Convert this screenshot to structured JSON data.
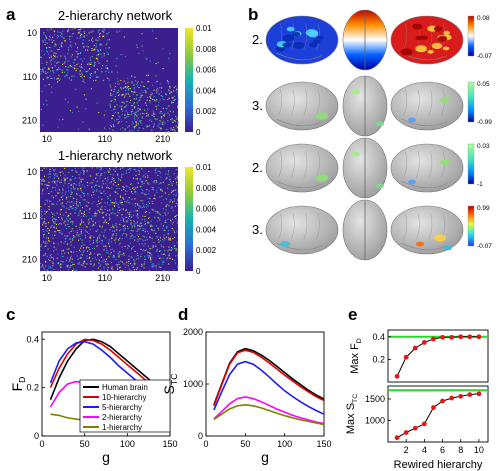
{
  "panel_labels": {
    "a": "a",
    "b": "b",
    "c": "c",
    "d": "d",
    "e": "e"
  },
  "panel_a": {
    "top_title": "2-hierarchy network",
    "bottom_title": "1-hierarchy network",
    "y_ticks": [
      "10",
      "110",
      "210"
    ],
    "x_ticks": [
      "10",
      "110",
      "210"
    ],
    "colorbar_ticks": [
      "0.01",
      "0.008",
      "0.006",
      "0.004",
      "0.002",
      "0"
    ],
    "colormap_low": "#3b1f8f",
    "colormap_high": "#f5e425"
  },
  "panel_b": {
    "rows": [
      {
        "label": "2.",
        "cbar_top": "0.08",
        "cbar_bottom": "-0.07",
        "style": "jet_full"
      },
      {
        "label": "3.",
        "cbar_top": "0.05",
        "cbar_bottom": "-0.99",
        "style": "patches_green"
      },
      {
        "label": "2.",
        "cbar_top": "0.03",
        "cbar_bottom": "-1",
        "style": "patches_green"
      },
      {
        "label": "3.",
        "cbar_top": "0.99",
        "cbar_bottom": "-0.07",
        "style": "patches_mixed"
      }
    ],
    "brain_gray": "#bdbdbd"
  },
  "chart_data": [
    {
      "panel": "c",
      "type": "line",
      "xlabel": "g",
      "ylabel": "F",
      "ylabel_sub": "D",
      "xlim": [
        0,
        150
      ],
      "ylim": [
        0,
        0.43
      ],
      "xticks": [
        "0",
        "50",
        "100",
        "150"
      ],
      "yticks": [
        "0",
        "0.2",
        "0.4"
      ],
      "x": [
        0,
        10,
        20,
        30,
        40,
        50,
        60,
        70,
        80,
        90,
        100,
        110,
        120,
        130,
        140,
        150
      ],
      "series": [
        {
          "name": "Human brain",
          "color": "#000000",
          "values": [
            null,
            0.15,
            0.24,
            0.31,
            0.36,
            0.395,
            0.4,
            0.39,
            0.37,
            0.34,
            0.31,
            0.28,
            0.25,
            0.22,
            0.19,
            0.165
          ]
        },
        {
          "name": "10-hierarchy",
          "color": "#e00000",
          "values": [
            null,
            0.2,
            0.28,
            0.34,
            0.38,
            0.4,
            0.395,
            0.38,
            0.355,
            0.325,
            0.295,
            0.265,
            0.235,
            0.205,
            0.18,
            0.155
          ]
        },
        {
          "name": "5-hierarchy",
          "color": "#1c1cf0",
          "values": [
            null,
            0.22,
            0.31,
            0.36,
            0.385,
            0.39,
            0.38,
            0.355,
            0.325,
            0.29,
            0.26,
            0.23,
            0.2,
            0.175,
            0.155,
            0.14
          ]
        },
        {
          "name": "2-hierarchy",
          "color": "#ff00ff",
          "values": [
            null,
            0.12,
            0.18,
            0.215,
            0.225,
            0.22,
            0.205,
            0.185,
            0.165,
            0.145,
            0.13,
            0.115,
            0.105,
            0.095,
            0.085,
            0.08
          ]
        },
        {
          "name": "1-hierarchy",
          "color": "#808000",
          "values": [
            null,
            0.09,
            0.085,
            0.075,
            0.07,
            0.065,
            0.06,
            0.055,
            0.05,
            0.045,
            0.04,
            0.035,
            0.03,
            0.028,
            0.025,
            0.022
          ]
        }
      ]
    },
    {
      "panel": "d",
      "type": "line",
      "xlabel": "g",
      "ylabel": "S",
      "ylabel_sub": "TC",
      "xlim": [
        0,
        150
      ],
      "ylim": [
        0,
        2000
      ],
      "xticks": [
        "0",
        "50",
        "100",
        "150"
      ],
      "yticks": [
        "0",
        "1000",
        "2000"
      ],
      "x": [
        0,
        10,
        20,
        30,
        40,
        50,
        60,
        70,
        80,
        90,
        100,
        110,
        120,
        130,
        140,
        150
      ],
      "series": [
        {
          "name": "Human brain",
          "color": "#000000",
          "values": [
            null,
            600,
            1000,
            1400,
            1620,
            1680,
            1640,
            1560,
            1460,
            1340,
            1220,
            1100,
            990,
            880,
            790,
            710
          ]
        },
        {
          "name": "10-hierarchy",
          "color": "#e00000",
          "values": [
            null,
            580,
            980,
            1380,
            1600,
            1650,
            1610,
            1520,
            1410,
            1290,
            1170,
            1060,
            950,
            850,
            760,
            680
          ]
        },
        {
          "name": "5-hierarchy",
          "color": "#1c1cf0",
          "values": [
            null,
            500,
            850,
            1180,
            1380,
            1430,
            1380,
            1270,
            1140,
            1000,
            870,
            760,
            660,
            570,
            490,
            420
          ]
        },
        {
          "name": "2-hierarchy",
          "color": "#ff00ff",
          "values": [
            null,
            330,
            470,
            620,
            720,
            750,
            720,
            660,
            590,
            520,
            460,
            400,
            350,
            310,
            270,
            240
          ]
        },
        {
          "name": "1-hierarchy",
          "color": "#808000",
          "values": [
            null,
            320,
            420,
            520,
            580,
            600,
            580,
            540,
            490,
            440,
            390,
            350,
            310,
            280,
            250,
            220
          ]
        }
      ]
    },
    {
      "panel": "e_top",
      "type": "line",
      "xlabel": "",
      "ylabel": "Max F",
      "ylabel_sub": "D",
      "xlim": [
        0,
        11
      ],
      "ylim": [
        0.0,
        0.46
      ],
      "yticks": [
        "0.2",
        "0.4"
      ],
      "x": [
        1,
        2,
        3,
        4,
        5,
        6,
        7,
        8,
        9,
        10
      ],
      "values": [
        0.05,
        0.22,
        0.3,
        0.35,
        0.38,
        0.395,
        0.395,
        0.4,
        0.4,
        0.4
      ],
      "reference": {
        "value": 0.4,
        "color": "#22dd22"
      }
    },
    {
      "panel": "e_bottom",
      "type": "line",
      "xlabel": "Rewired hierarchy",
      "ylabel": "Max S",
      "ylabel_sub": "TC",
      "xlim": [
        0,
        11
      ],
      "ylim": [
        500,
        1800
      ],
      "xticks": [
        "2",
        "4",
        "6",
        "8",
        "10"
      ],
      "yticks": [
        "1000",
        "1500"
      ],
      "x": [
        1,
        2,
        3,
        4,
        5,
        6,
        7,
        8,
        9,
        10
      ],
      "values": [
        600,
        720,
        820,
        920,
        1300,
        1450,
        1520,
        1560,
        1600,
        1620
      ],
      "reference": {
        "value": 1700,
        "color": "#22dd22"
      }
    }
  ]
}
